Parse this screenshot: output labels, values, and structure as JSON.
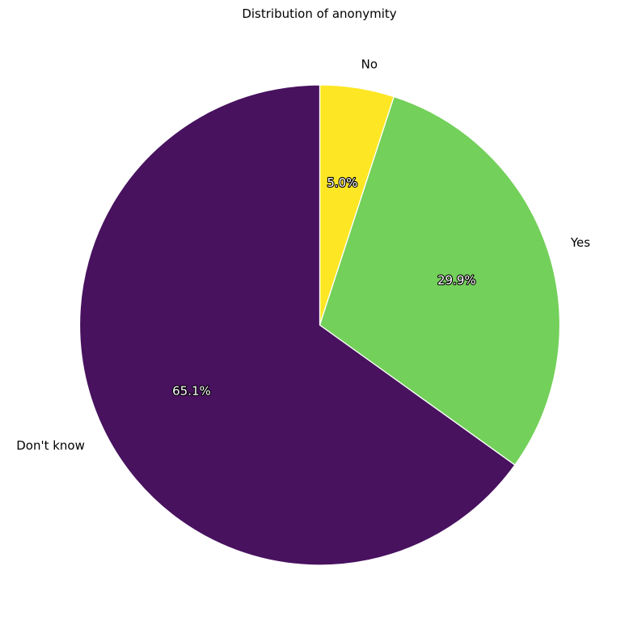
{
  "chart_data": {
    "type": "pie",
    "title": "Distribution of anonymity",
    "slices": [
      {
        "label": "No",
        "value": 5.0,
        "pct_label": "5.0%",
        "color": "#fde725"
      },
      {
        "label": "Yes",
        "value": 29.9,
        "pct_label": "29.9%",
        "color": "#73d05a"
      },
      {
        "label": "Don't know",
        "value": 65.1,
        "pct_label": "65.1%",
        "color": "#48125f"
      }
    ],
    "start_angle": 90,
    "direction": "clockwise",
    "wedge_edge_color": "#ffffff",
    "legend": "none"
  }
}
